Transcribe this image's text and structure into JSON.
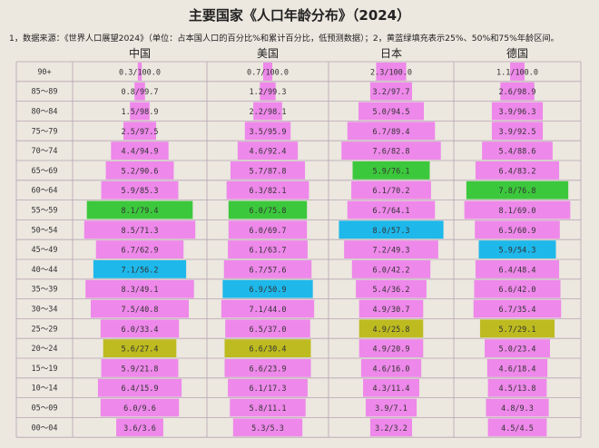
{
  "title": "主要国家《人口年龄分布》（2024）",
  "note": "1，数据来源：《世界人口展望2024》（单位：占本国人口的百分比%和累计百分比，低预测数据）；2，黄蓝绿填充表示25%、50%和75%年龄区间。",
  "colors": {
    "bar": "#ee88ea",
    "p25": "#bdbb20",
    "p50": "#1eb8ea",
    "p75": "#3cc83c",
    "grid": "#b5a5b3",
    "background": "#ece7df"
  },
  "chart_data": {
    "type": "bar",
    "orientation": "horizontal",
    "layout": "population-pyramid",
    "categories": [
      "90+",
      "85～89",
      "80～84",
      "75～79",
      "70～74",
      "65～69",
      "60～64",
      "55～59",
      "50～54",
      "45～49",
      "40～44",
      "35～39",
      "30～34",
      "25～29",
      "20～24",
      "15～19",
      "10～14",
      "05～09",
      "00～04"
    ],
    "series": [
      {
        "name": "中国",
        "values": [
          0.3,
          0.8,
          1.5,
          2.5,
          4.4,
          5.2,
          5.9,
          8.1,
          8.5,
          6.7,
          7.1,
          8.3,
          7.5,
          6.0,
          5.6,
          5.9,
          6.4,
          6.0,
          3.6
        ],
        "cumulative": [
          100.0,
          99.7,
          98.9,
          97.5,
          94.9,
          90.6,
          85.3,
          79.4,
          71.3,
          62.9,
          56.2,
          49.1,
          40.8,
          33.4,
          27.4,
          21.8,
          15.9,
          9.6,
          3.6
        ],
        "labels": [
          "0.3/100.0",
          "0.8/99.7",
          "1.5/98.9",
          "2.5/97.5",
          "4.4/94.9",
          "5.2/90.6",
          "5.9/85.3",
          "8.1/79.4",
          "8.5/71.3",
          "6.7/62.9",
          "7.1/56.2",
          "8.3/49.1",
          "7.5/40.8",
          "6.0/33.4",
          "5.6/27.4",
          "5.9/21.8",
          "6.4/15.9",
          "6.0/9.6",
          "3.6/3.6"
        ],
        "highlight": {
          "75": "55～59",
          "50": "40～44",
          "25": "20～24"
        }
      },
      {
        "name": "美国",
        "values": [
          0.7,
          1.2,
          2.2,
          3.5,
          4.6,
          5.7,
          6.3,
          6.0,
          6.0,
          6.1,
          6.7,
          6.9,
          7.1,
          6.5,
          6.6,
          6.6,
          6.1,
          5.8,
          5.3
        ],
        "cumulative": [
          100.0,
          99.3,
          98.1,
          95.9,
          92.4,
          87.8,
          82.1,
          75.8,
          69.7,
          63.7,
          57.6,
          50.9,
          44.0,
          37.0,
          30.4,
          23.9,
          17.3,
          11.1,
          5.3
        ],
        "labels": [
          "0.7/100.0",
          "1.2/99.3",
          "2.2/98.1",
          "3.5/95.9",
          "4.6/92.4",
          "5.7/87.8",
          "6.3/82.1",
          "6.0/75.8",
          "6.0/69.7",
          "6.1/63.7",
          "6.7/57.6",
          "6.9/50.9",
          "7.1/44.0",
          "6.5/37.0",
          "6.6/30.4",
          "6.6/23.9",
          "6.1/17.3",
          "5.8/11.1",
          "5.3/5.3"
        ],
        "highlight": {
          "75": "55～59",
          "50": "35～39",
          "25": "20～24"
        }
      },
      {
        "name": "日本",
        "values": [
          2.3,
          3.2,
          5.0,
          6.7,
          7.6,
          5.9,
          6.1,
          6.7,
          8.0,
          7.2,
          6.0,
          5.4,
          4.9,
          4.9,
          4.9,
          4.6,
          4.3,
          3.9,
          3.2
        ],
        "cumulative": [
          100.0,
          97.7,
          94.5,
          89.4,
          82.8,
          76.1,
          70.2,
          64.1,
          57.3,
          49.3,
          42.2,
          36.2,
          30.7,
          25.8,
          20.9,
          16.0,
          11.4,
          7.1,
          3.2
        ],
        "labels": [
          "2.3/100.0",
          "3.2/97.7",
          "5.0/94.5",
          "6.7/89.4",
          "7.6/82.8",
          "5.9/76.1",
          "6.1/70.2",
          "6.7/64.1",
          "8.0/57.3",
          "7.2/49.3",
          "6.0/42.2",
          "5.4/36.2",
          "4.9/30.7",
          "4.9/25.8",
          "4.9/20.9",
          "4.6/16.0",
          "4.3/11.4",
          "3.9/7.1",
          "3.2/3.2"
        ],
        "highlight": {
          "75": "65～69",
          "50": "50～54",
          "25": "25～29"
        }
      },
      {
        "name": "德国",
        "values": [
          1.1,
          2.6,
          3.9,
          3.9,
          5.4,
          6.4,
          7.8,
          8.1,
          6.5,
          5.9,
          6.4,
          6.6,
          6.7,
          5.7,
          5.0,
          4.6,
          4.5,
          4.8,
          4.5
        ],
        "cumulative": [
          100.0,
          98.9,
          96.3,
          92.5,
          88.6,
          83.2,
          76.8,
          69.0,
          60.9,
          54.3,
          48.4,
          42.0,
          35.4,
          29.1,
          23.4,
          18.4,
          13.8,
          9.3,
          4.5
        ],
        "labels": [
          "1.1/100.0",
          "2.6/98.9",
          "3.9/96.3",
          "3.9/92.5",
          "5.4/88.6",
          "6.4/83.2",
          "7.8/76.8",
          "8.1/69.0",
          "6.5/60.9",
          "5.9/54.3",
          "6.4/48.4",
          "6.6/42.0",
          "6.7/35.4",
          "5.7/29.1",
          "5.0/23.4",
          "4.6/18.4",
          "4.5/13.8",
          "4.8/9.3",
          "4.5/4.5"
        ],
        "highlight": {
          "75": "60～64",
          "50": "45～49",
          "25": "25～29"
        }
      }
    ],
    "grid": true,
    "legend": "none"
  }
}
